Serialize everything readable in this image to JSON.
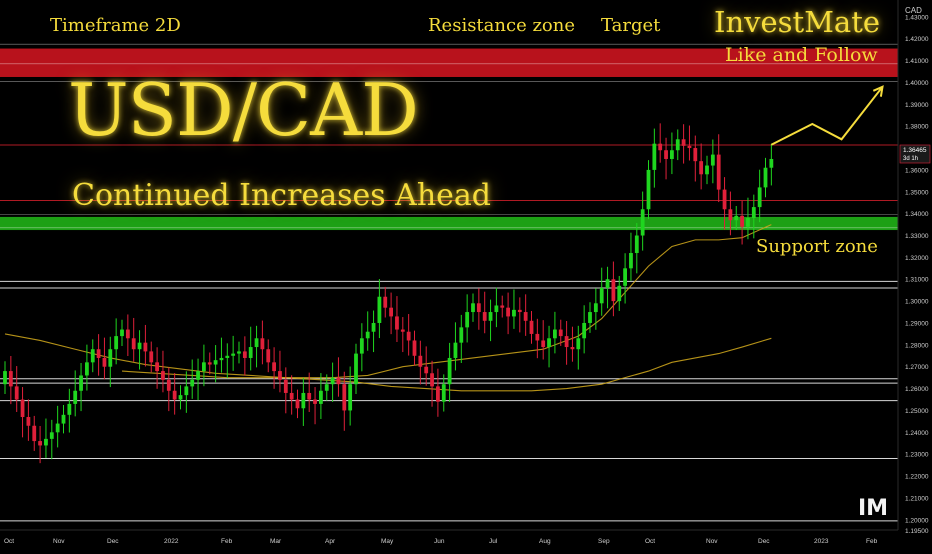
{
  "title": "USD/CAD",
  "subtitle": "Continued Increases Ahead",
  "timeframe_label": "Timeframe 2D",
  "resistance_label": "Resistance zone",
  "target_label": "Target",
  "support_label": "Support zone",
  "brand": "InvestMate",
  "cta": "Like and Follow",
  "logo_text": "IM",
  "colors": {
    "background": "#000000",
    "up_candle": "#1fd61f",
    "down_candle": "#e0203a",
    "resistance_zone": "#c8141e",
    "support_zone": "#1fae17",
    "annotation": "#f5dc3c",
    "moving_average": "#c9a21b"
  },
  "chart_data": {
    "type": "candlestick",
    "ylabel": "CAD",
    "ylim": [
      1.1935,
      1.4345
    ],
    "y_ticks": [
      "1.43000",
      "1.42000",
      "1.41000",
      "1.40000",
      "1.39000",
      "1.38000",
      "1.37000",
      "1.36000",
      "1.35000",
      "1.34000",
      "1.33000",
      "1.32000",
      "1.31000",
      "1.30000",
      "1.29000",
      "1.28000",
      "1.27000",
      "1.26000",
      "1.25000",
      "1.24000",
      "1.23000",
      "1.22000",
      "1.21000",
      "1.20000",
      "1.19500"
    ],
    "x_ticks": [
      "Oct",
      "Nov",
      "Dec",
      "2022",
      "Feb",
      "Mar",
      "Apr",
      "May",
      "Jun",
      "Jul",
      "Aug",
      "Sep",
      "Oct",
      "Nov",
      "Dec",
      "2023",
      "Feb"
    ],
    "price_label": {
      "value": "1.36465",
      "timer": "3d 1h"
    },
    "candles_close": [
      1.268,
      1.261,
      1.255,
      1.247,
      1.243,
      1.236,
      1.234,
      1.237,
      1.24,
      1.244,
      1.248,
      1.253,
      1.259,
      1.266,
      1.272,
      1.278,
      1.274,
      1.27,
      1.278,
      1.284,
      1.287,
      1.283,
      1.278,
      1.281,
      1.277,
      1.272,
      1.268,
      1.264,
      1.259,
      1.255,
      1.257,
      1.261,
      1.264,
      1.268,
      1.272,
      1.271,
      1.273,
      1.274,
      1.275,
      1.276,
      1.277,
      1.274,
      1.279,
      1.283,
      1.278,
      1.272,
      1.268,
      1.264,
      1.258,
      1.255,
      1.251,
      1.258,
      1.255,
      1.253,
      1.259,
      1.262,
      1.265,
      1.262,
      1.25,
      1.262,
      1.276,
      1.283,
      1.286,
      1.29,
      1.302,
      1.297,
      1.293,
      1.287,
      1.286,
      1.282,
      1.275,
      1.27,
      1.267,
      1.261,
      1.254,
      1.262,
      1.274,
      1.281,
      1.288,
      1.295,
      1.299,
      1.295,
      1.291,
      1.295,
      1.298,
      1.297,
      1.293,
      1.296,
      1.295,
      1.291,
      1.285,
      1.282,
      1.279,
      1.283,
      1.287,
      1.284,
      1.279,
      1.278,
      1.283,
      1.29,
      1.295,
      1.299,
      1.306,
      1.31,
      1.3,
      1.307,
      1.315,
      1.322,
      1.33,
      1.342,
      1.36,
      1.372,
      1.369,
      1.365,
      1.369,
      1.374,
      1.371,
      1.37,
      1.364,
      1.358,
      1.362,
      1.367,
      1.351,
      1.342,
      1.337,
      1.339,
      1.334,
      1.338,
      1.343,
      1.352,
      1.361,
      1.365
    ],
    "zones": [
      {
        "name": "Resistance zone",
        "from": 1.4025,
        "to": 1.4155
      },
      {
        "name": "Support zone",
        "from": 1.3325,
        "to": 1.3385
      }
    ],
    "horizontal_levels": [
      1.3714,
      1.346,
      1.309,
      1.306,
      1.2645,
      1.2625,
      1.2545,
      1.228,
      1.1995
    ],
    "moving_averages": [
      {
        "x": [
          0,
          6,
          12,
          18,
          24,
          30,
          36,
          42,
          48,
          54,
          60,
          66,
          72,
          78,
          84,
          90,
          96,
          102,
          106,
          110,
          114,
          118,
          122,
          126,
          131
        ],
        "y": [
          1.285,
          1.282,
          1.278,
          1.274,
          1.271,
          1.269,
          1.267,
          1.266,
          1.265,
          1.264,
          1.263,
          1.261,
          1.26,
          1.259,
          1.259,
          1.259,
          1.26,
          1.262,
          1.265,
          1.268,
          1.272,
          1.274,
          1.276,
          1.279,
          1.283
        ]
      },
      {
        "x": [
          20,
          26,
          32,
          38,
          44,
          50,
          56,
          62,
          68,
          74,
          80,
          86,
          92,
          98,
          102,
          106,
          110,
          114,
          118,
          122,
          126,
          131
        ],
        "y": [
          1.268,
          1.267,
          1.266,
          1.265,
          1.265,
          1.265,
          1.265,
          1.266,
          1.27,
          1.272,
          1.274,
          1.276,
          1.278,
          1.284,
          1.292,
          1.304,
          1.316,
          1.325,
          1.328,
          1.328,
          1.329,
          1.335
        ]
      }
    ],
    "projection": {
      "x": [
        131,
        138,
        143,
        150
      ],
      "y": [
        1.3715,
        1.381,
        1.374,
        1.398
      ]
    },
    "grid": false,
    "legend": "none"
  }
}
